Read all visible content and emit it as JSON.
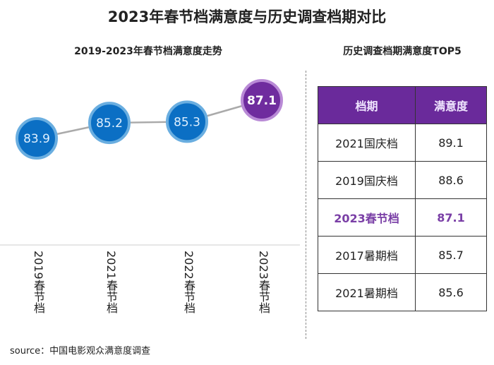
{
  "title": "2023年春节档满意度与历史调查档期对比",
  "source": "source：中国电影观众满意度调查",
  "chart_data": [
    {
      "type": "line",
      "title": "2019-2023年春节档满意度走势",
      "categories": [
        "2019春节档",
        "2021春节档",
        "2022春节档",
        "2023春节档"
      ],
      "values": [
        83.9,
        85.2,
        85.3,
        87.1
      ],
      "colors": {
        "default": "#0b6fc4",
        "highlight": "#6f2c9e",
        "line": "#aaaaaa"
      }
    },
    {
      "type": "table",
      "title": "历史调查档期满意度TOP5",
      "columns": [
        "档期",
        "满意度"
      ],
      "rows": [
        [
          "2021国庆档",
          "89.1"
        ],
        [
          "2019国庆档",
          "88.6"
        ],
        [
          "2023春节档",
          "87.1"
        ],
        [
          "2017暑期档",
          "85.7"
        ],
        [
          "2021暑期档",
          "85.6"
        ]
      ],
      "highlight_row": 2,
      "header_color": "#6a2a9b"
    }
  ]
}
